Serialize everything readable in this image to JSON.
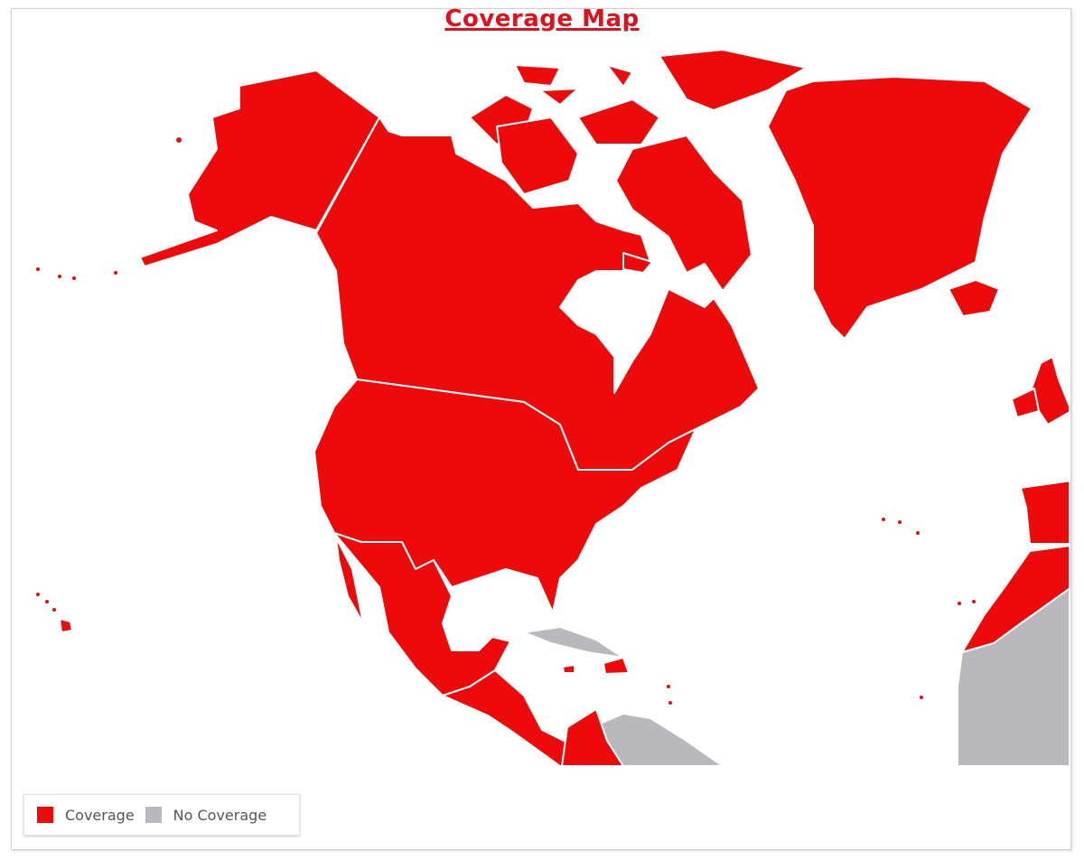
{
  "title": "Coverage Map",
  "legend": [
    {
      "label": "Coverage",
      "color": "#ee0a0a"
    },
    {
      "label": "No Coverage",
      "color": "#b9b9bd"
    }
  ],
  "regions": {
    "coverage": [
      "Alaska",
      "Canada",
      "United States",
      "Mexico",
      "Central America",
      "Greenland",
      "Iceland",
      "Arctic islands",
      "Hispaniola",
      "Jamaica",
      "United Kingdom",
      "Ireland",
      "Iberia",
      "Morocco",
      "Hawaii",
      "Colombia"
    ],
    "no_coverage": [
      "Cuba",
      "South America",
      "West Africa"
    ]
  }
}
